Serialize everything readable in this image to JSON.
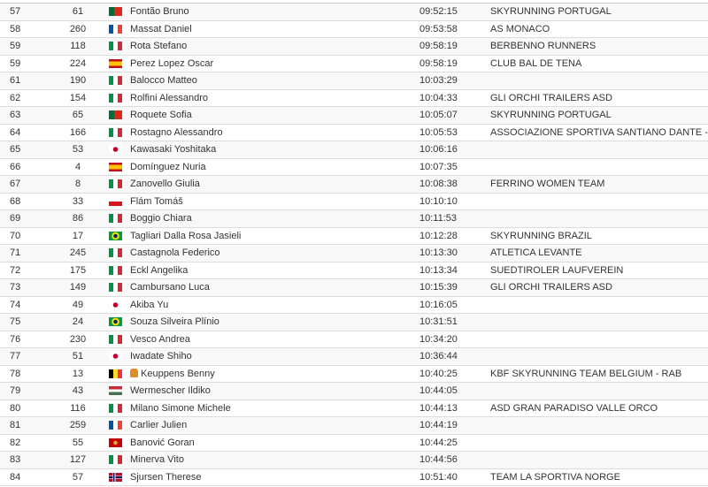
{
  "rows": [
    {
      "rank": "57",
      "bib": "61",
      "country": "PT",
      "name": "Fontão Bruno",
      "time": "09:52:15",
      "team": "SKYRUNNING PORTUGAL"
    },
    {
      "rank": "58",
      "bib": "260",
      "country": "FR",
      "name": "Massat Daniel",
      "time": "09:53:58",
      "team": "AS MONACO"
    },
    {
      "rank": "59",
      "bib": "118",
      "country": "IT",
      "name": "Rota Stefano",
      "time": "09:58:19",
      "team": "BERBENNO RUNNERS"
    },
    {
      "rank": "59",
      "bib": "224",
      "country": "ES",
      "name": "Perez Lopez Oscar",
      "time": "09:58:19",
      "team": "CLUB BAL DE TENA"
    },
    {
      "rank": "61",
      "bib": "190",
      "country": "IT",
      "name": "Balocco Matteo",
      "time": "10:03:29",
      "team": ""
    },
    {
      "rank": "62",
      "bib": "154",
      "country": "IT",
      "name": "Rolfini Alessandro",
      "time": "10:04:33",
      "team": "GLI ORCHI TRAILERS ASD"
    },
    {
      "rank": "63",
      "bib": "65",
      "country": "PT",
      "name": "Roquete Sofia",
      "time": "10:05:07",
      "team": "SKYRUNNING PORTUGAL"
    },
    {
      "rank": "64",
      "bib": "166",
      "country": "IT",
      "name": "Rostagno Alessandro",
      "time": "10:05:53",
      "team": "ASSOCIAZIONE SPORTIVA SANTIANO DANTE -"
    },
    {
      "rank": "65",
      "bib": "53",
      "country": "JP",
      "name": "Kawasaki Yoshitaka",
      "time": "10:06:16",
      "team": ""
    },
    {
      "rank": "66",
      "bib": "4",
      "country": "ES",
      "name": "Domínguez Nuria",
      "time": "10:07:35",
      "team": ""
    },
    {
      "rank": "67",
      "bib": "8",
      "country": "IT",
      "name": "Zanovello Giulia",
      "time": "10:08:38",
      "team": "FERRINO WOMEN TEAM"
    },
    {
      "rank": "68",
      "bib": "33",
      "country": "CZ",
      "name": "Flám Tomáš",
      "time": "10:10:10",
      "team": ""
    },
    {
      "rank": "69",
      "bib": "86",
      "country": "IT",
      "name": "Boggio Chiara",
      "time": "10:11:53",
      "team": ""
    },
    {
      "rank": "70",
      "bib": "17",
      "country": "BR",
      "name": "Tagliari Dalla Rosa Jasieli",
      "time": "10:12:28",
      "team": "SKYRUNNING BRAZIL"
    },
    {
      "rank": "71",
      "bib": "245",
      "country": "IT",
      "name": "Castagnola Federico",
      "time": "10:13:30",
      "team": "ATLETICA LEVANTE"
    },
    {
      "rank": "72",
      "bib": "175",
      "country": "IT",
      "name": "Eckl Angelika",
      "time": "10:13:34",
      "team": "SUEDTIROLER LAUFVEREIN"
    },
    {
      "rank": "73",
      "bib": "149",
      "country": "IT",
      "name": "Cambursano Luca",
      "time": "10:15:39",
      "team": "GLI ORCHI TRAILERS ASD"
    },
    {
      "rank": "74",
      "bib": "49",
      "country": "JP",
      "name": "Akiba Yu",
      "time": "10:16:05",
      "team": ""
    },
    {
      "rank": "75",
      "bib": "24",
      "country": "BR",
      "name": "Souza Silveira Plínio",
      "time": "10:31:51",
      "team": ""
    },
    {
      "rank": "76",
      "bib": "230",
      "country": "IT",
      "name": "Vesco Andrea",
      "time": "10:34:20",
      "team": ""
    },
    {
      "rank": "77",
      "bib": "51",
      "country": "JP",
      "name": "Iwadate Shiho",
      "time": "10:36:44",
      "team": ""
    },
    {
      "rank": "78",
      "bib": "13",
      "country": "BE",
      "name": "Keuppens Benny",
      "time": "10:40:25",
      "team": "KBF SKYRUNNING TEAM BELGIUM - RAB",
      "icon": "person-badge-icon"
    },
    {
      "rank": "79",
      "bib": "43",
      "country": "HU",
      "name": "Wermescher Ildiko",
      "time": "10:44:05",
      "team": ""
    },
    {
      "rank": "80",
      "bib": "116",
      "country": "IT",
      "name": "Milano Simone Michele",
      "time": "10:44:13",
      "team": "ASD GRAN PARADISO VALLE ORCO"
    },
    {
      "rank": "81",
      "bib": "259",
      "country": "FR",
      "name": "Carlier Julien",
      "time": "10:44:19",
      "team": ""
    },
    {
      "rank": "82",
      "bib": "55",
      "country": "ME",
      "name": "Banović Goran",
      "time": "10:44:25",
      "team": ""
    },
    {
      "rank": "83",
      "bib": "127",
      "country": "IT",
      "name": "Minerva Vito",
      "time": "10:44:56",
      "team": ""
    },
    {
      "rank": "84",
      "bib": "57",
      "country": "NO",
      "name": "Sjursen Therese",
      "time": "10:51:40",
      "team": "TEAM LA SPORTIVA NORGE"
    }
  ]
}
